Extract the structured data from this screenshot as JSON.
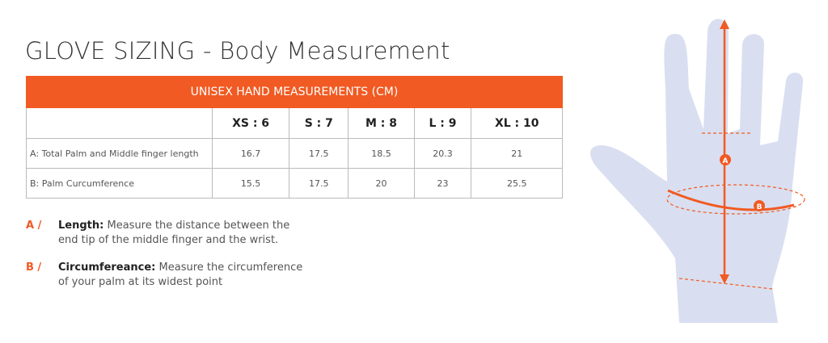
{
  "title": "GLOVE SIZING - Body Measurement",
  "table": {
    "header": "UNISEX HAND MEASUREMENTS (CM)",
    "sizes": [
      "XS : 6",
      "S : 7",
      "M : 8",
      "L : 9",
      "XL : 10"
    ],
    "rows": [
      {
        "label": "A: Total Palm and Middle finger length",
        "values": [
          "16.7",
          "17.5",
          "18.5",
          "20.3",
          "21"
        ]
      },
      {
        "label": "B: Palm Curcumference",
        "values": [
          "15.5",
          "17.5",
          "20",
          "23",
          "25.5"
        ]
      }
    ]
  },
  "notes": [
    {
      "letter": "A /",
      "term": "Length:",
      "text1": "Measure the distance between the",
      "text2": "end tip of the middle finger and the wrist."
    },
    {
      "letter": "B /",
      "term": "Circumfereance:",
      "text1": "Measure the circumference",
      "text2": "of your palm at its widest point"
    }
  ],
  "diagram": {
    "markers": [
      "A",
      "B"
    ],
    "accent": "#f15a22",
    "hand_color": "#d9dff0"
  }
}
